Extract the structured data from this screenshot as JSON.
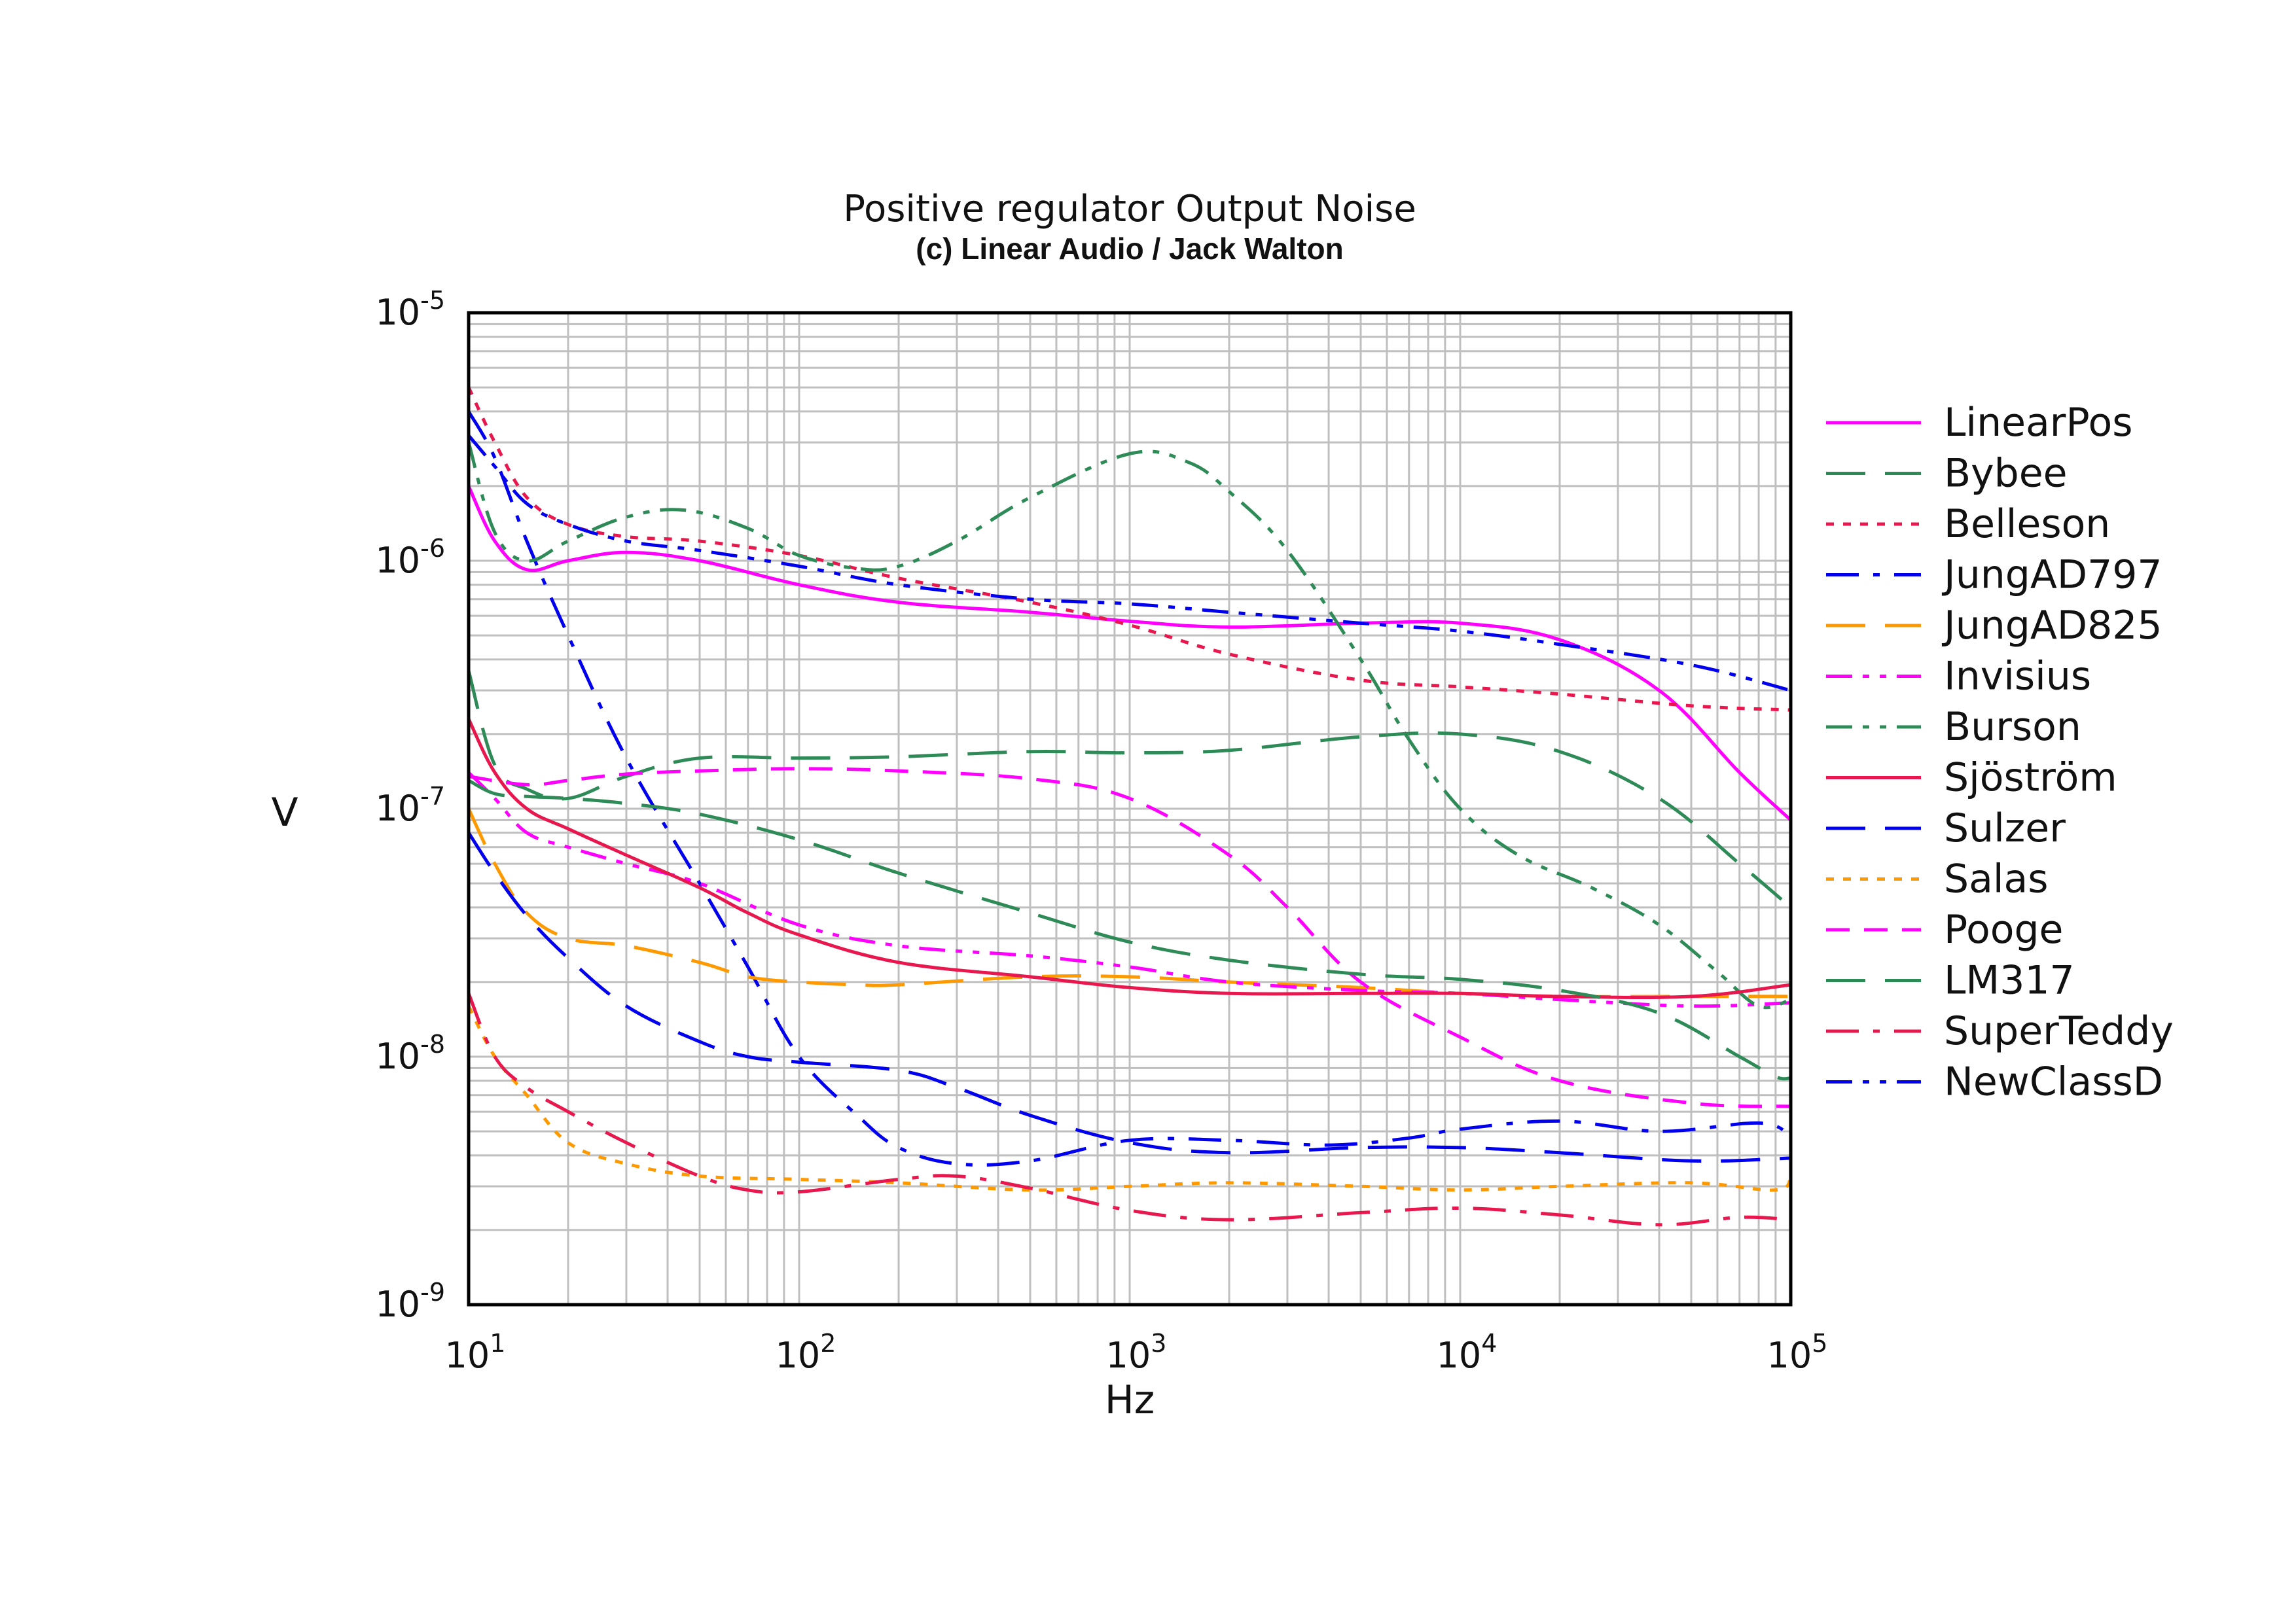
{
  "chart_data": {
    "type": "line",
    "title": "Positive regulator Output Noise",
    "subtitle": "(c) Linear Audio / Jack Walton",
    "xlabel": "Hz",
    "ylabel": "V",
    "xscale": "log",
    "yscale": "log",
    "xlim": [
      10,
      100000
    ],
    "ylim": [
      1e-09,
      1e-05
    ],
    "x_ticks": [
      {
        "base": "10",
        "exp": "1"
      },
      {
        "base": "10",
        "exp": "2"
      },
      {
        "base": "10",
        "exp": "3"
      },
      {
        "base": "10",
        "exp": "4"
      },
      {
        "base": "10",
        "exp": "5"
      }
    ],
    "y_ticks": [
      {
        "base": "10",
        "exp": "-9"
      },
      {
        "base": "10",
        "exp": "-8"
      },
      {
        "base": "10",
        "exp": "-7"
      },
      {
        "base": "10",
        "exp": "-6"
      },
      {
        "base": "10",
        "exp": "-5"
      }
    ],
    "grid": true,
    "legend_position": "right",
    "series": [
      {
        "name": "LinearPos",
        "color": "#ff00ff",
        "dash": "solid",
        "x": [
          10,
          12,
          15,
          20,
          30,
          50,
          100,
          200,
          500,
          1000,
          2000,
          5000,
          10000,
          20000,
          40000,
          70000,
          100000
        ],
        "y": [
          2e-06,
          1.2e-06,
          9.2e-07,
          1e-06,
          1.08e-06,
          1e-06,
          8e-07,
          6.8e-07,
          6.2e-07,
          5.7e-07,
          5.4e-07,
          5.6e-07,
          5.6e-07,
          4.8e-07,
          3e-07,
          1.4e-07,
          9e-08
        ]
      },
      {
        "name": "Bybee",
        "color": "#2e8b57",
        "dash": "longdash",
        "x": [
          10,
          12,
          15,
          20,
          30,
          50,
          100,
          200,
          500,
          1000,
          2000,
          5000,
          10000,
          20000,
          40000,
          70000,
          100000
        ],
        "y": [
          3.6e-07,
          1.5e-07,
          1.2e-07,
          1.1e-07,
          1.35e-07,
          1.6e-07,
          1.6e-07,
          1.62e-07,
          1.7e-07,
          1.68e-07,
          1.72e-07,
          1.95e-07,
          2e-07,
          1.7e-07,
          1.1e-07,
          6e-08,
          4e-08
        ]
      },
      {
        "name": "Belleson",
        "color": "#e8174d",
        "dash": "dotted",
        "x": [
          10,
          12,
          15,
          20,
          30,
          50,
          100,
          200,
          500,
          1000,
          2000,
          5000,
          10000,
          20000,
          50000,
          100000
        ],
        "y": [
          5e-06,
          3e-06,
          1.8e-06,
          1.4e-06,
          1.25e-06,
          1.2e-06,
          1.05e-06,
          8.5e-07,
          6.8e-07,
          5.5e-07,
          4.2e-07,
          3.3e-07,
          3.1e-07,
          2.9e-07,
          2.6e-07,
          2.5e-07
        ]
      },
      {
        "name": "JungAD797",
        "color": "#0000ee",
        "dash": "dashdot",
        "x": [
          10,
          12,
          15,
          20,
          30,
          50,
          70,
          100,
          150,
          200,
          300,
          500,
          1000,
          2000,
          4000,
          7000,
          10000,
          20000,
          40000,
          80000,
          100000
        ],
        "y": [
          4e-06,
          2.6e-06,
          1.2e-06,
          5e-07,
          1.6e-07,
          5e-08,
          2.3e-08,
          1e-08,
          5.8e-09,
          4.3e-09,
          3.7e-09,
          3.8e-09,
          4.6e-09,
          4.6e-09,
          4.4e-09,
          4.7e-09,
          5.1e-09,
          5.5e-09,
          5e-09,
          5.4e-09,
          4.8e-09
        ]
      },
      {
        "name": "JungAD825",
        "color": "#ff9900",
        "dash": "longdash",
        "x": [
          10,
          12,
          15,
          20,
          30,
          50,
          70,
          100,
          150,
          200,
          500,
          1000,
          2000,
          5000,
          10000,
          20000,
          50000,
          100000
        ],
        "y": [
          1e-07,
          6e-08,
          3.8e-08,
          3e-08,
          2.8e-08,
          2.4e-08,
          2.1e-08,
          2e-08,
          1.95e-08,
          1.95e-08,
          2.1e-08,
          2.1e-08,
          2e-08,
          1.9e-08,
          1.8e-08,
          1.75e-08,
          1.75e-08,
          1.75e-08
        ]
      },
      {
        "name": "Invisius",
        "color": "#ff00ff",
        "dash": "dashdotdot",
        "x": [
          10,
          12,
          15,
          20,
          30,
          50,
          100,
          200,
          500,
          1000,
          2000,
          5000,
          10000,
          20000,
          50000,
          100000
        ],
        "y": [
          1.4e-07,
          1.1e-07,
          8e-08,
          7e-08,
          6e-08,
          5e-08,
          3.4e-08,
          2.8e-08,
          2.55e-08,
          2.3e-08,
          2e-08,
          1.85e-08,
          1.8e-08,
          1.7e-08,
          1.6e-08,
          1.65e-08
        ]
      },
      {
        "name": "Burson",
        "color": "#2e8b57",
        "dash": "dashdotdot",
        "x": [
          10,
          12,
          15,
          20,
          30,
          45,
          70,
          100,
          150,
          200,
          300,
          500,
          1000,
          1500,
          2000,
          3000,
          5000,
          7000,
          10000,
          15000,
          25000,
          40000,
          60000,
          80000,
          100000
        ],
        "y": [
          3e-06,
          1.3e-06,
          1e-06,
          1.2e-06,
          1.5e-06,
          1.6e-06,
          1.35e-06,
          1.05e-06,
          9.3e-07,
          9.5e-07,
          1.2e-06,
          1.8e-06,
          2.7e-06,
          2.5e-06,
          1.9e-06,
          1.1e-06,
          4e-07,
          1.9e-07,
          1e-07,
          6.5e-08,
          4.8e-08,
          3.4e-08,
          2.2e-08,
          1.6e-08,
          1.7e-08
        ]
      },
      {
        "name": "Sjöström",
        "color": "#e8174d",
        "dash": "solid",
        "x": [
          10,
          12,
          15,
          20,
          30,
          50,
          70,
          100,
          200,
          500,
          1000,
          2000,
          5000,
          10000,
          20000,
          50000,
          100000
        ],
        "y": [
          2.3e-07,
          1.4e-07,
          1e-07,
          8.3e-08,
          6.5e-08,
          4.8e-08,
          3.8e-08,
          3.1e-08,
          2.4e-08,
          2.1e-08,
          1.9e-08,
          1.8e-08,
          1.8e-08,
          1.8e-08,
          1.75e-08,
          1.75e-08,
          1.95e-08
        ]
      },
      {
        "name": "Sulzer",
        "color": "#0000ee",
        "dash": "longdash",
        "x": [
          10,
          12,
          15,
          20,
          30,
          50,
          70,
          100,
          200,
          300,
          500,
          1000,
          2000,
          5000,
          10000,
          20000,
          50000,
          100000
        ],
        "y": [
          8e-08,
          5.5e-08,
          3.7e-08,
          2.5e-08,
          1.6e-08,
          1.15e-08,
          1e-08,
          9.5e-09,
          8.8e-09,
          7.5e-09,
          5.8e-09,
          4.5e-09,
          4.1e-09,
          4.3e-09,
          4.3e-09,
          4.1e-09,
          3.8e-09,
          3.9e-09
        ]
      },
      {
        "name": "Salas",
        "color": "#ff9900",
        "dash": "dotted",
        "x": [
          10,
          12,
          15,
          20,
          30,
          50,
          100,
          200,
          500,
          1000,
          2000,
          5000,
          10000,
          20000,
          50000,
          90000,
          100000
        ],
        "y": [
          1.6e-08,
          1e-08,
          7e-09,
          4.5e-09,
          3.7e-09,
          3.3e-09,
          3.2e-09,
          3.1e-09,
          2.9e-09,
          3e-09,
          3.1e-09,
          3e-09,
          2.9e-09,
          3e-09,
          3.1e-09,
          2.9e-09,
          3.3e-09
        ]
      },
      {
        "name": "Pooge",
        "color": "#ff00ff",
        "dash": "dashed",
        "x": [
          10,
          15,
          20,
          30,
          50,
          100,
          200,
          500,
          1000,
          2000,
          3000,
          5000,
          10000,
          20000,
          50000,
          100000
        ],
        "y": [
          1.35e-07,
          1.25e-07,
          1.3e-07,
          1.38e-07,
          1.42e-07,
          1.45e-07,
          1.42e-07,
          1.32e-07,
          1.1e-07,
          6.5e-08,
          4e-08,
          2e-08,
          1.2e-08,
          8e-09,
          6.5e-09,
          6.3e-09
        ]
      },
      {
        "name": "LM317",
        "color": "#2e8b57",
        "dash": "longdash",
        "x": [
          10,
          12,
          15,
          20,
          30,
          50,
          100,
          200,
          500,
          1000,
          2000,
          5000,
          10000,
          20000,
          40000,
          70000,
          90000,
          100000
        ],
        "y": [
          1.3e-07,
          1.15e-07,
          1.12e-07,
          1.1e-07,
          1.05e-07,
          9.5e-08,
          7.5e-08,
          5.5e-08,
          3.8e-08,
          2.9e-08,
          2.45e-08,
          2.15e-08,
          2.05e-08,
          1.85e-08,
          1.5e-08,
          1e-08,
          8.3e-09,
          8.2e-09
        ]
      },
      {
        "name": "SuperTeddy",
        "color": "#e8174d",
        "dash": "dashdot",
        "x": [
          10,
          12,
          15,
          20,
          30,
          50,
          70,
          100,
          200,
          300,
          500,
          1000,
          2000,
          5000,
          10000,
          20000,
          40000,
          70000,
          100000
        ],
        "y": [
          1.8e-08,
          1e-08,
          7.5e-09,
          6e-09,
          4.5e-09,
          3.3e-09,
          2.9e-09,
          2.85e-09,
          3.2e-09,
          3.3e-09,
          2.95e-09,
          2.4e-09,
          2.2e-09,
          2.35e-09,
          2.45e-09,
          2.3e-09,
          2.1e-09,
          2.25e-09,
          2.2e-09
        ]
      },
      {
        "name": "NewClassD",
        "color": "#0000ee",
        "dash": "dashdotdot",
        "x": [
          10,
          12,
          15,
          20,
          30,
          50,
          100,
          200,
          500,
          1000,
          2000,
          5000,
          10000,
          20000,
          50000,
          100000
        ],
        "y": [
          3.2e-06,
          2.4e-06,
          1.7e-06,
          1.4e-06,
          1.2e-06,
          1.1e-06,
          9.5e-07,
          8e-07,
          7e-07,
          6.7e-07,
          6.2e-07,
          5.6e-07,
          5.2e-07,
          4.6e-07,
          3.8e-07,
          3e-07
        ]
      }
    ]
  }
}
